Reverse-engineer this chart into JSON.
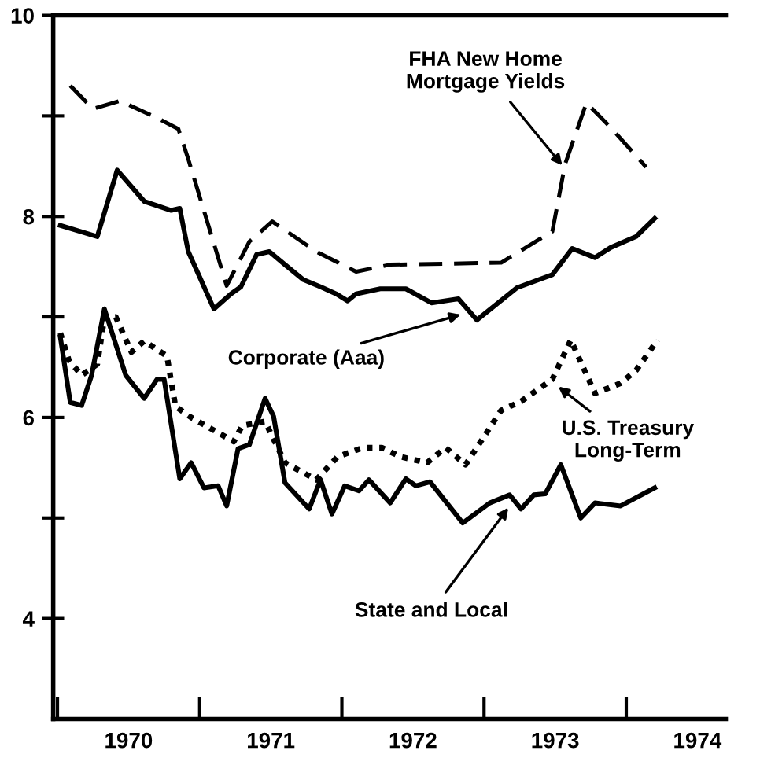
{
  "chart_data": {
    "type": "line",
    "series": [
      {
        "color": "#000000",
        "line_style": "dashed",
        "x": [
          1970.09,
          1970.25,
          1970.44,
          1970.7,
          1970.85,
          1970.92,
          1971.19,
          1971.35,
          1971.51,
          1971.82,
          1972.1,
          1972.34,
          1973.12,
          1973.48,
          1973.57,
          1973.72,
          1973.9,
          1974.14
        ],
        "values": [
          9.3,
          9.07,
          9.15,
          8.98,
          8.87,
          8.57,
          7.31,
          7.75,
          7.95,
          7.65,
          7.45,
          7.52,
          7.54,
          7.85,
          8.52,
          9.13,
          8.87,
          8.49
        ]
      },
      {
        "color": "#000000",
        "line_style": "solid",
        "x": [
          1970.02,
          1970.28,
          1970.42,
          1970.61,
          1970.8,
          1970.86,
          1970.92,
          1971.1,
          1971.22,
          1971.29,
          1971.4,
          1971.49,
          1971.6,
          1971.73,
          1971.85,
          1971.96,
          1972.04,
          1972.1,
          1972.27,
          1972.45,
          1972.63,
          1972.82,
          1972.95,
          1973.23,
          1973.48,
          1973.62,
          1973.78,
          1973.89,
          1974.07,
          1974.2
        ],
        "values": [
          7.91,
          7.8,
          8.46,
          8.15,
          8.06,
          8.08,
          7.65,
          7.08,
          7.23,
          7.3,
          7.62,
          7.65,
          7.52,
          7.37,
          7.3,
          7.23,
          7.16,
          7.23,
          7.28,
          7.28,
          7.14,
          7.18,
          6.97,
          7.29,
          7.42,
          7.68,
          7.59,
          7.69,
          7.8,
          7.98
        ]
      },
      {
        "color": "#000000",
        "line_style": "dotted",
        "x": [
          1970.02,
          1970.08,
          1970.17,
          1970.28,
          1970.33,
          1970.41,
          1970.52,
          1970.61,
          1970.77,
          1970.83,
          1970.94,
          1971.24,
          1971.3,
          1971.46,
          1971.6,
          1971.82,
          1971.97,
          1972.15,
          1972.28,
          1972.41,
          1972.6,
          1972.73,
          1972.87,
          1973.12,
          1973.26,
          1973.48,
          1973.61,
          1973.78,
          1973.96,
          1974.07,
          1974.22
        ],
        "values": [
          6.84,
          6.57,
          6.42,
          6.53,
          6.99,
          7.0,
          6.65,
          6.76,
          6.61,
          6.11,
          6.0,
          5.76,
          5.92,
          5.96,
          5.55,
          5.38,
          5.61,
          5.7,
          5.7,
          5.61,
          5.55,
          5.7,
          5.53,
          6.07,
          6.16,
          6.38,
          6.77,
          6.24,
          6.34,
          6.47,
          6.77
        ]
      },
      {
        "color": "#000000",
        "line_style": "solid",
        "x": [
          1970.02,
          1970.09,
          1970.17,
          1970.24,
          1970.33,
          1970.48,
          1970.61,
          1970.7,
          1970.75,
          1970.86,
          1970.94,
          1971.03,
          1971.13,
          1971.19,
          1971.27,
          1971.35,
          1971.46,
          1971.52,
          1971.6,
          1971.77,
          1971.85,
          1971.93,
          1972.02,
          1972.12,
          1972.19,
          1972.34,
          1972.45,
          1972.52,
          1972.62,
          1972.85,
          1973.04,
          1973.18,
          1973.26,
          1973.35,
          1973.43,
          1973.54,
          1973.68,
          1973.78,
          1973.96,
          1974.2
        ],
        "values": [
          6.8,
          6.15,
          6.12,
          6.42,
          7.08,
          6.42,
          6.19,
          6.38,
          6.38,
          5.39,
          5.55,
          5.3,
          5.32,
          5.12,
          5.69,
          5.73,
          6.19,
          6.01,
          5.35,
          5.09,
          5.38,
          5.04,
          5.32,
          5.27,
          5.38,
          5.15,
          5.39,
          5.32,
          5.36,
          4.95,
          5.15,
          5.23,
          5.09,
          5.23,
          5.24,
          5.53,
          5.0,
          5.15,
          5.12,
          5.3
        ]
      }
    ],
    "annotations": [
      {
        "text": "FHA New Home\nMortgage Yields",
        "x": 1973.56,
        "y": 8.49
      },
      {
        "text": "Corporate (Aaa)",
        "x": 1972.85,
        "y": 7.03
      },
      {
        "text": "U.S. Treasury\nLong-Term",
        "x": 1973.51,
        "y": 6.32
      },
      {
        "text": "State and Local",
        "x": 1973.18,
        "y": 5.12
      }
    ],
    "xlim": [
      1969.97,
      1974.7
    ],
    "xticks": [
      {
        "value": 1970,
        "label": null
      },
      {
        "value": 1971,
        "label": null
      },
      {
        "value": 1972,
        "label": null
      },
      {
        "value": 1973,
        "label": null
      },
      {
        "value": 1974,
        "label": null
      },
      {
        "value": 1970.5,
        "label": "1970"
      },
      {
        "value": 1971.5,
        "label": "1971"
      },
      {
        "value": 1972.5,
        "label": "1972"
      },
      {
        "value": 1973.5,
        "label": "1973"
      },
      {
        "value": 1974.5,
        "label": "1974"
      }
    ],
    "ylim": [
      3,
      10
    ],
    "yticks": [
      4,
      {
        "value": 5,
        "label": null
      },
      6,
      {
        "value": 7,
        "label": null
      },
      8,
      {
        "value": 9,
        "label": null
      },
      10
    ],
    "grid": false,
    "legend": false
  }
}
